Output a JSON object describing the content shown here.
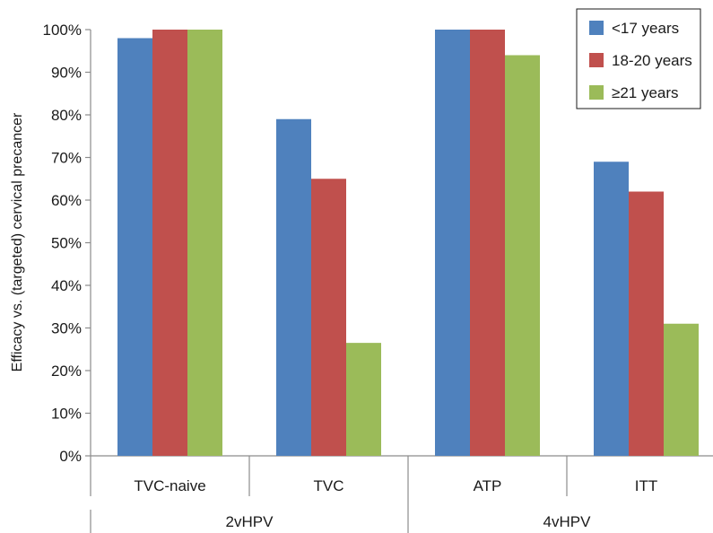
{
  "chart_data": {
    "type": "bar",
    "title": "",
    "ylabel": "Efficacy vs. (targeted)  cervical precancer",
    "xlabel": "",
    "ylim": [
      0,
      100
    ],
    "y_ticks": [
      "0%",
      "10%",
      "20%",
      "30%",
      "40%",
      "50%",
      "60%",
      "70%",
      "80%",
      "90%",
      "100%"
    ],
    "categories": [
      "TVC-naive",
      "TVC",
      "ATP",
      "ITT"
    ],
    "groups": [
      {
        "label": "2vHPV",
        "categories": [
          "TVC-naive",
          "TVC"
        ]
      },
      {
        "label": "4vHPV",
        "categories": [
          "ATP",
          "ITT"
        ]
      }
    ],
    "series": [
      {
        "name": "<17 years",
        "color": "#4f81bd",
        "values": [
          98,
          79,
          100,
          69
        ]
      },
      {
        "name": "18-20 years",
        "color": "#c0504d",
        "values": [
          100,
          65,
          100,
          62
        ]
      },
      {
        "name": "≥21 years",
        "color": "#9bbb59",
        "values": [
          100,
          26.5,
          94,
          31
        ]
      }
    ],
    "grid": false,
    "legend_position": "top-right"
  }
}
